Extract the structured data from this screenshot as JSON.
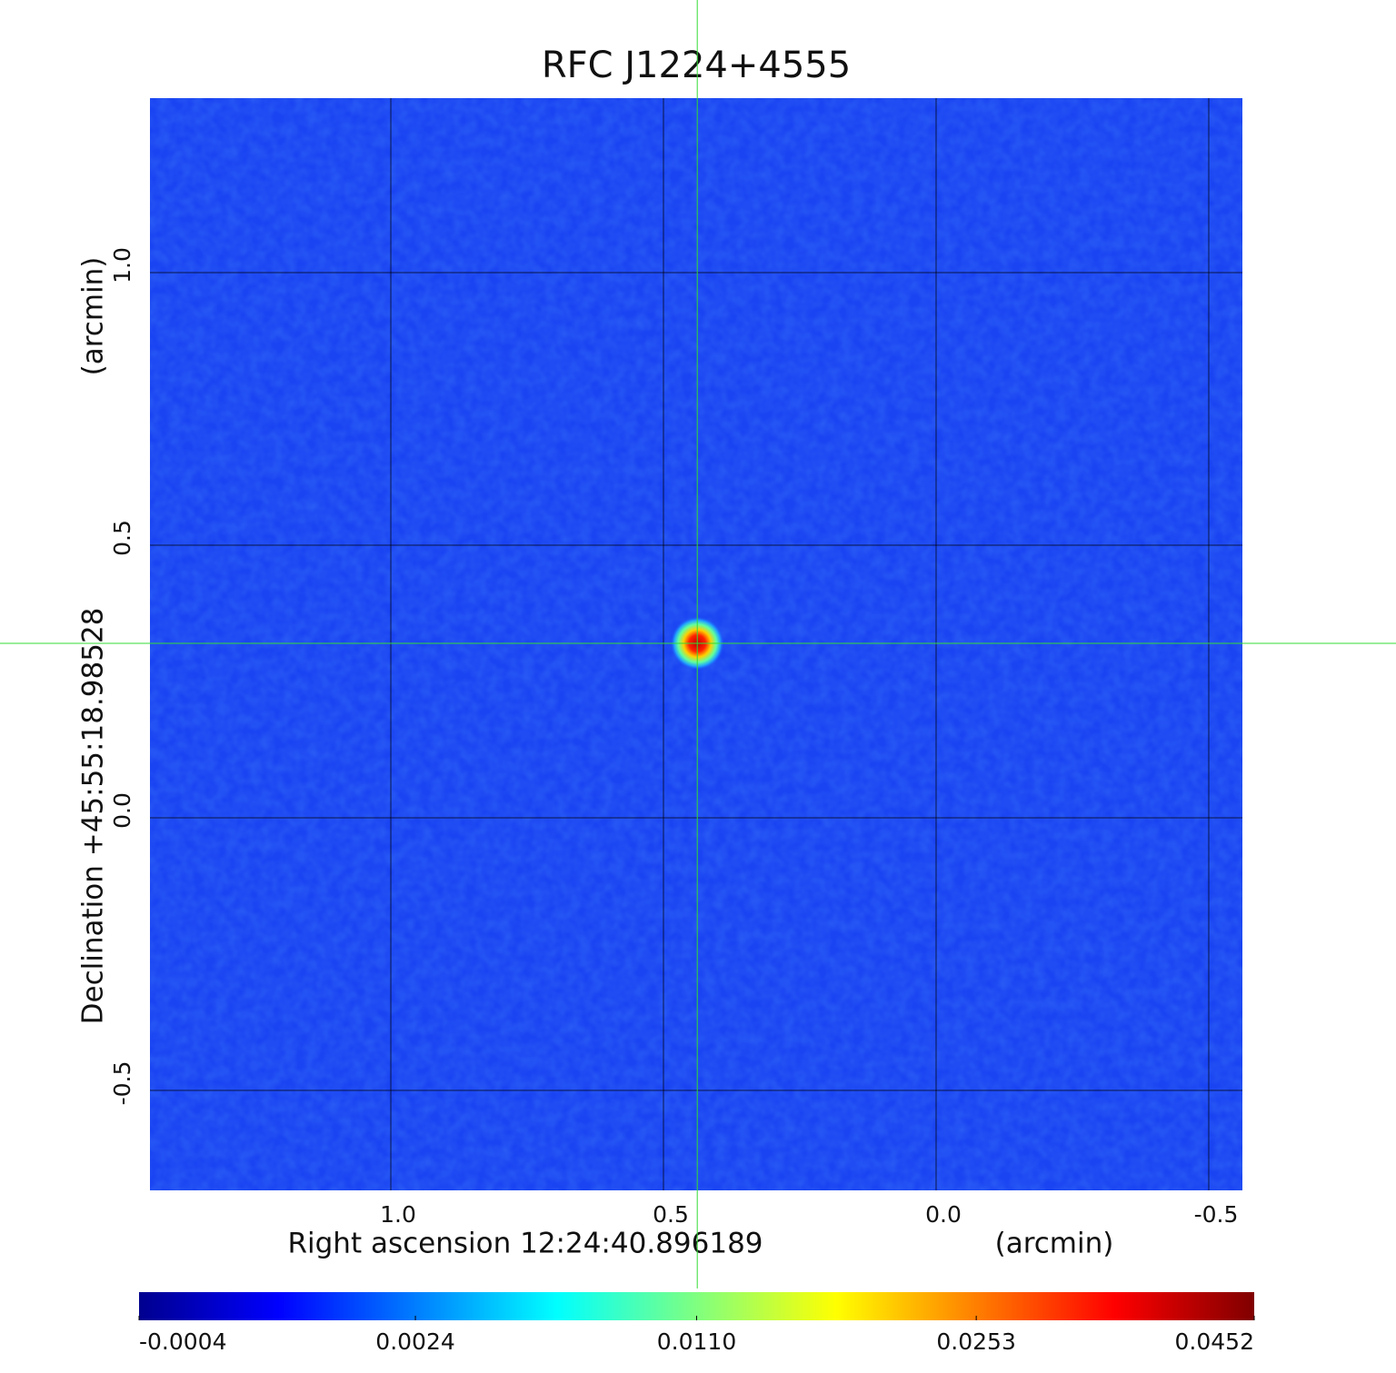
{
  "chart_data": {
    "type": "image",
    "title": "RFC J1224+4555",
    "title_color": "#1010d8",
    "x_label": "Right ascension  12:24:40.896189",
    "x_unit": "(arcmin)",
    "y_label": "Declination  +45:55:18.98528",
    "y_unit": "(arcmin)",
    "xlim": [
      1.4417,
      -0.5617
    ],
    "ylim": [
      -0.6833,
      1.32
    ],
    "xticks": [
      {
        "value": 1.0,
        "label": "1.0"
      },
      {
        "value": 0.5,
        "label": "0.5"
      },
      {
        "value": 0.0,
        "label": "0.0"
      },
      {
        "value": -0.5,
        "label": "-0.5"
      }
    ],
    "yticks": [
      {
        "value": 1.0,
        "label": "1.0"
      },
      {
        "value": 0.5,
        "label": "0.5"
      },
      {
        "value": 0.0,
        "label": "0.0"
      },
      {
        "value": -0.5,
        "label": "-0.5"
      }
    ],
    "grid": true,
    "crosshair": {
      "x": 0.438,
      "y": 0.32,
      "color": "#33dd33"
    },
    "colormap": "jet",
    "color_scale": "sqrt",
    "clim": [
      -0.0004,
      0.0452
    ],
    "cticks": [
      -0.0004,
      0.0024,
      {
        "value": 0.011,
        "label": "0.0110"
      },
      0.0253,
      0.0452
    ]
  }
}
